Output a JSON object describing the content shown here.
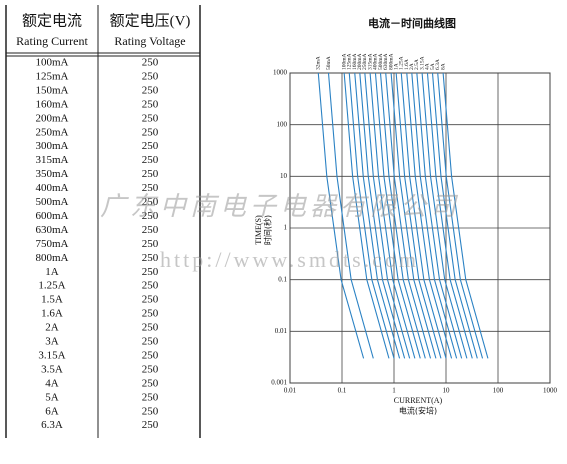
{
  "table": {
    "header": [
      [
        "额定电流",
        "额定电压(V)"
      ],
      [
        "Rating Current",
        "Rating Voltage"
      ]
    ],
    "rows": [
      [
        "100mA",
        250
      ],
      [
        "125mA",
        250
      ],
      [
        "150mA",
        250
      ],
      [
        "160mA",
        250
      ],
      [
        "200mA",
        250
      ],
      [
        "250mA",
        250
      ],
      [
        "300mA",
        250
      ],
      [
        "315mA",
        250
      ],
      [
        "350mA",
        250
      ],
      [
        "400mA",
        250
      ],
      [
        "500mA",
        250
      ],
      [
        "600mA",
        250
      ],
      [
        "630mA",
        250
      ],
      [
        "750mA",
        250
      ],
      [
        "800mA",
        250
      ],
      [
        "1A",
        250
      ],
      [
        "1.25A",
        250
      ],
      [
        "1.5A",
        250
      ],
      [
        "1.6A",
        250
      ],
      [
        "2A",
        250
      ],
      [
        "3A",
        250
      ],
      [
        "3.15A",
        250
      ],
      [
        "3.5A",
        250
      ],
      [
        "4A",
        250
      ],
      [
        "5A",
        250
      ],
      [
        "6A",
        250
      ],
      [
        "6.3A",
        250
      ]
    ]
  },
  "chart_data": {
    "type": "line",
    "title": "电流－时间曲线图",
    "x_label": "CURRENT(A)",
    "x_label_cn": "电流(安培)",
    "y_label": "TIME(S)",
    "y_label_cn": "时间(秒)",
    "log_x": true,
    "log_y": true,
    "grid": true,
    "xlim": [
      0.01,
      1000
    ],
    "xticks": [
      0.01,
      0.1,
      1,
      10,
      100,
      1000
    ],
    "ylim": [
      0.001,
      1000
    ],
    "yticks": [
      0.001,
      0.01,
      0.1,
      1,
      10,
      100,
      1000
    ],
    "series": [
      {
        "name": "32mA",
        "color": "#2b82c4",
        "x": [
          0.035,
          0.051,
          0.096,
          0.26
        ],
        "values": [
          1000,
          10,
          0.1,
          0.003
        ]
      },
      {
        "name": "50mA",
        "color": "#2b82c4",
        "x": [
          0.055,
          0.08,
          0.15,
          0.4
        ],
        "values": [
          1000,
          10,
          0.1,
          0.003
        ]
      },
      {
        "name": "100mA",
        "color": "#2b82c4",
        "x": [
          0.11,
          0.16,
          0.3,
          0.8
        ],
        "values": [
          1000,
          10,
          0.1,
          0.003
        ]
      },
      {
        "name": "125mA",
        "color": "#2b82c4",
        "x": [
          0.138,
          0.2,
          0.375,
          1
        ],
        "values": [
          1000,
          10,
          0.1,
          0.003
        ]
      },
      {
        "name": "160mA",
        "color": "#2b82c4",
        "x": [
          0.176,
          0.256,
          0.48,
          1.28
        ],
        "values": [
          1000,
          10,
          0.1,
          0.003
        ]
      },
      {
        "name": "200mA",
        "color": "#2b82c4",
        "x": [
          0.22,
          0.32,
          0.6,
          1.6
        ],
        "values": [
          1000,
          10,
          0.1,
          0.003
        ]
      },
      {
        "name": "250mA",
        "color": "#2b82c4",
        "x": [
          0.275,
          0.4,
          0.75,
          2
        ],
        "values": [
          1000,
          10,
          0.1,
          0.003
        ]
      },
      {
        "name": "315mA",
        "color": "#2b82c4",
        "x": [
          0.347,
          0.504,
          0.945,
          2.52
        ],
        "values": [
          1000,
          10,
          0.1,
          0.003
        ]
      },
      {
        "name": "400mA",
        "color": "#2b82c4",
        "x": [
          0.44,
          0.64,
          1.2,
          3.2
        ],
        "values": [
          1000,
          10,
          0.1,
          0.003
        ]
      },
      {
        "name": "500mA",
        "color": "#2b82c4",
        "x": [
          0.55,
          0.8,
          1.5,
          4
        ],
        "values": [
          1000,
          10,
          0.1,
          0.003
        ]
      },
      {
        "name": "630mA",
        "color": "#2b82c4",
        "x": [
          0.693,
          1.01,
          1.89,
          5.04
        ],
        "values": [
          1000,
          10,
          0.1,
          0.003
        ]
      },
      {
        "name": "800mA",
        "color": "#2b82c4",
        "x": [
          0.88,
          1.28,
          2.4,
          6.4
        ],
        "values": [
          1000,
          10,
          0.1,
          0.003
        ]
      },
      {
        "name": "1A",
        "color": "#2b82c4",
        "x": [
          1.1,
          1.6,
          3,
          8
        ],
        "values": [
          1000,
          10,
          0.1,
          0.003
        ]
      },
      {
        "name": "1.25A",
        "color": "#2b82c4",
        "x": [
          1.38,
          2,
          3.75,
          10
        ],
        "values": [
          1000,
          10,
          0.1,
          0.003
        ]
      },
      {
        "name": "1.6A",
        "color": "#2b82c4",
        "x": [
          1.76,
          2.56,
          4.8,
          12.8
        ],
        "values": [
          1000,
          10,
          0.1,
          0.003
        ]
      },
      {
        "name": "2A",
        "color": "#2b82c4",
        "x": [
          2.2,
          3.2,
          6,
          16
        ],
        "values": [
          1000,
          10,
          0.1,
          0.003
        ]
      },
      {
        "name": "2.5A",
        "color": "#2b82c4",
        "x": [
          2.75,
          4,
          7.5,
          20
        ],
        "values": [
          1000,
          10,
          0.1,
          0.003
        ]
      },
      {
        "name": "3.15A",
        "color": "#2b82c4",
        "x": [
          3.47,
          5.04,
          9.45,
          25.2
        ],
        "values": [
          1000,
          10,
          0.1,
          0.003
        ]
      },
      {
        "name": "4A",
        "color": "#2b82c4",
        "x": [
          4.4,
          6.4,
          12,
          32
        ],
        "values": [
          1000,
          10,
          0.1,
          0.003
        ]
      },
      {
        "name": "5A",
        "color": "#2b82c4",
        "x": [
          5.5,
          8,
          15,
          40
        ],
        "values": [
          1000,
          10,
          0.1,
          0.003
        ]
      },
      {
        "name": "6.3A",
        "color": "#2b82c4",
        "x": [
          6.93,
          10.1,
          18.9,
          50.4
        ],
        "values": [
          1000,
          10,
          0.1,
          0.003
        ]
      },
      {
        "name": "8A",
        "color": "#2b82c4",
        "x": [
          8.8,
          12.8,
          24,
          64
        ],
        "values": [
          1000,
          10,
          0.1,
          0.003
        ]
      }
    ]
  },
  "watermark": [
    "广东中南电子电器有限公司",
    "http://www.smdts.com"
  ]
}
